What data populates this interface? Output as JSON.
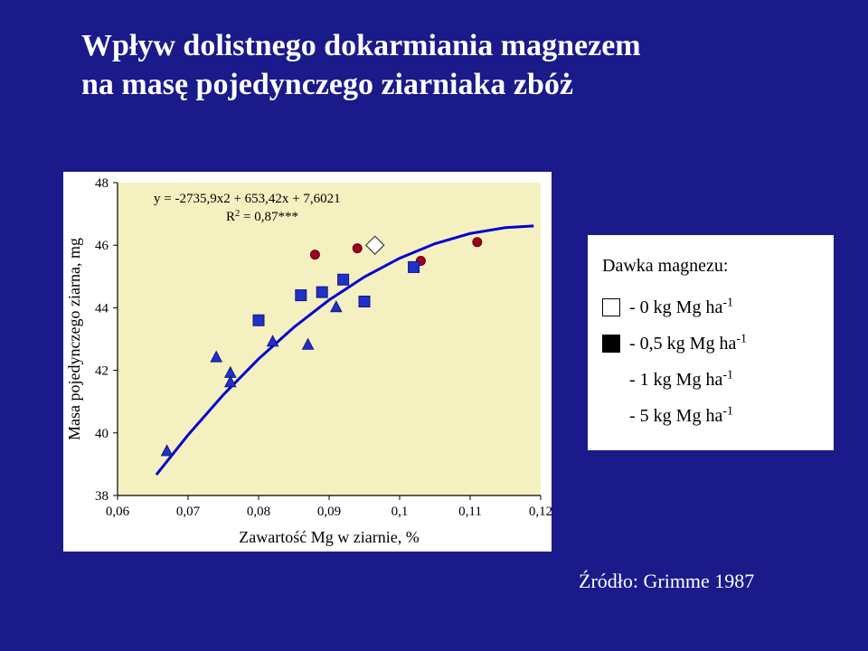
{
  "title_line1": "Wpływ dolistnego dokarmiania magnezem",
  "title_line2": "na masę pojedynczego ziarniaka zbóż",
  "source": "Źródło: Grimme 1987",
  "chart": {
    "type": "scatter-with-curve",
    "background_color": "#ffffff",
    "plot_bg": "#f5f0c0",
    "xlabel": "Zawartość Mg w ziarnie, %",
    "ylabel": "Masa pojedynczego ziarna, mg",
    "label_fontsize": 18,
    "eq_line1": "y = -2735,9x2 + 653,42x + 7,6021",
    "eq_line2": "R",
    "eq_line2_sup": "2",
    "eq_line2_rest": " = 0,87***",
    "eq_fontsize": 15,
    "xlim": [
      0.06,
      0.12
    ],
    "ylim": [
      38,
      48
    ],
    "x_ticks": [
      0.06,
      0.07,
      0.08,
      0.09,
      0.1,
      0.11,
      0.12
    ],
    "x_tick_labels": [
      "0,06",
      "0,07",
      "0,08",
      "0,09",
      "0,1",
      "0,11",
      "0,12"
    ],
    "y_ticks": [
      38,
      40,
      42,
      44,
      46,
      48
    ],
    "y_tick_labels": [
      "38",
      "40",
      "42",
      "44",
      "46",
      "48"
    ],
    "tick_fontsize": 15,
    "axis_color": "#000000",
    "curve_color": "#0000d0",
    "curve_width": 3,
    "curve_x": [
      0.0655,
      0.07,
      0.075,
      0.08,
      0.085,
      0.09,
      0.095,
      0.1,
      0.105,
      0.11,
      0.115,
      0.119
    ],
    "series": [
      {
        "marker": "diamond",
        "color": "#ffffff",
        "stroke": "#404040",
        "size": 14,
        "points": [
          [
            0.0965,
            46.0
          ]
        ]
      },
      {
        "marker": "circle",
        "color": "#a00020",
        "stroke": "#600010",
        "size": 10,
        "points": [
          [
            0.088,
            45.7
          ],
          [
            0.094,
            45.9
          ],
          [
            0.103,
            45.5
          ],
          [
            0.111,
            46.1
          ]
        ]
      },
      {
        "marker": "square",
        "color": "#2030c8",
        "stroke": "#101880",
        "size": 12,
        "points": [
          [
            0.08,
            43.6
          ],
          [
            0.086,
            44.4
          ],
          [
            0.089,
            44.5
          ],
          [
            0.092,
            44.9
          ],
          [
            0.095,
            44.2
          ],
          [
            0.102,
            45.3
          ]
        ]
      },
      {
        "marker": "triangle",
        "color": "#2030c8",
        "stroke": "#101880",
        "size": 12,
        "points": [
          [
            0.067,
            39.4
          ],
          [
            0.074,
            42.4
          ],
          [
            0.076,
            41.9
          ],
          [
            0.076,
            41.6
          ],
          [
            0.082,
            42.9
          ],
          [
            0.087,
            42.8
          ],
          [
            0.091,
            44.0
          ]
        ]
      }
    ]
  },
  "legend": {
    "title": "Dawka magnezu:",
    "items": [
      {
        "color": "#ffffff",
        "stroke": "#000000",
        "label_pre": "- 0 kg Mg ha",
        "sup": "-1"
      },
      {
        "color": "#000000",
        "stroke": "#000000",
        "label_pre": "- 0,5 kg Mg ha",
        "sup": "-1"
      },
      {
        "color": "#ffffff",
        "stroke": "#ffffff",
        "label_pre": "- 1 kg Mg ha",
        "sup": "-1"
      },
      {
        "color": "#ffffff",
        "stroke": "#ffffff",
        "label_pre": "- 5 kg Mg ha",
        "sup": "-1"
      }
    ]
  }
}
